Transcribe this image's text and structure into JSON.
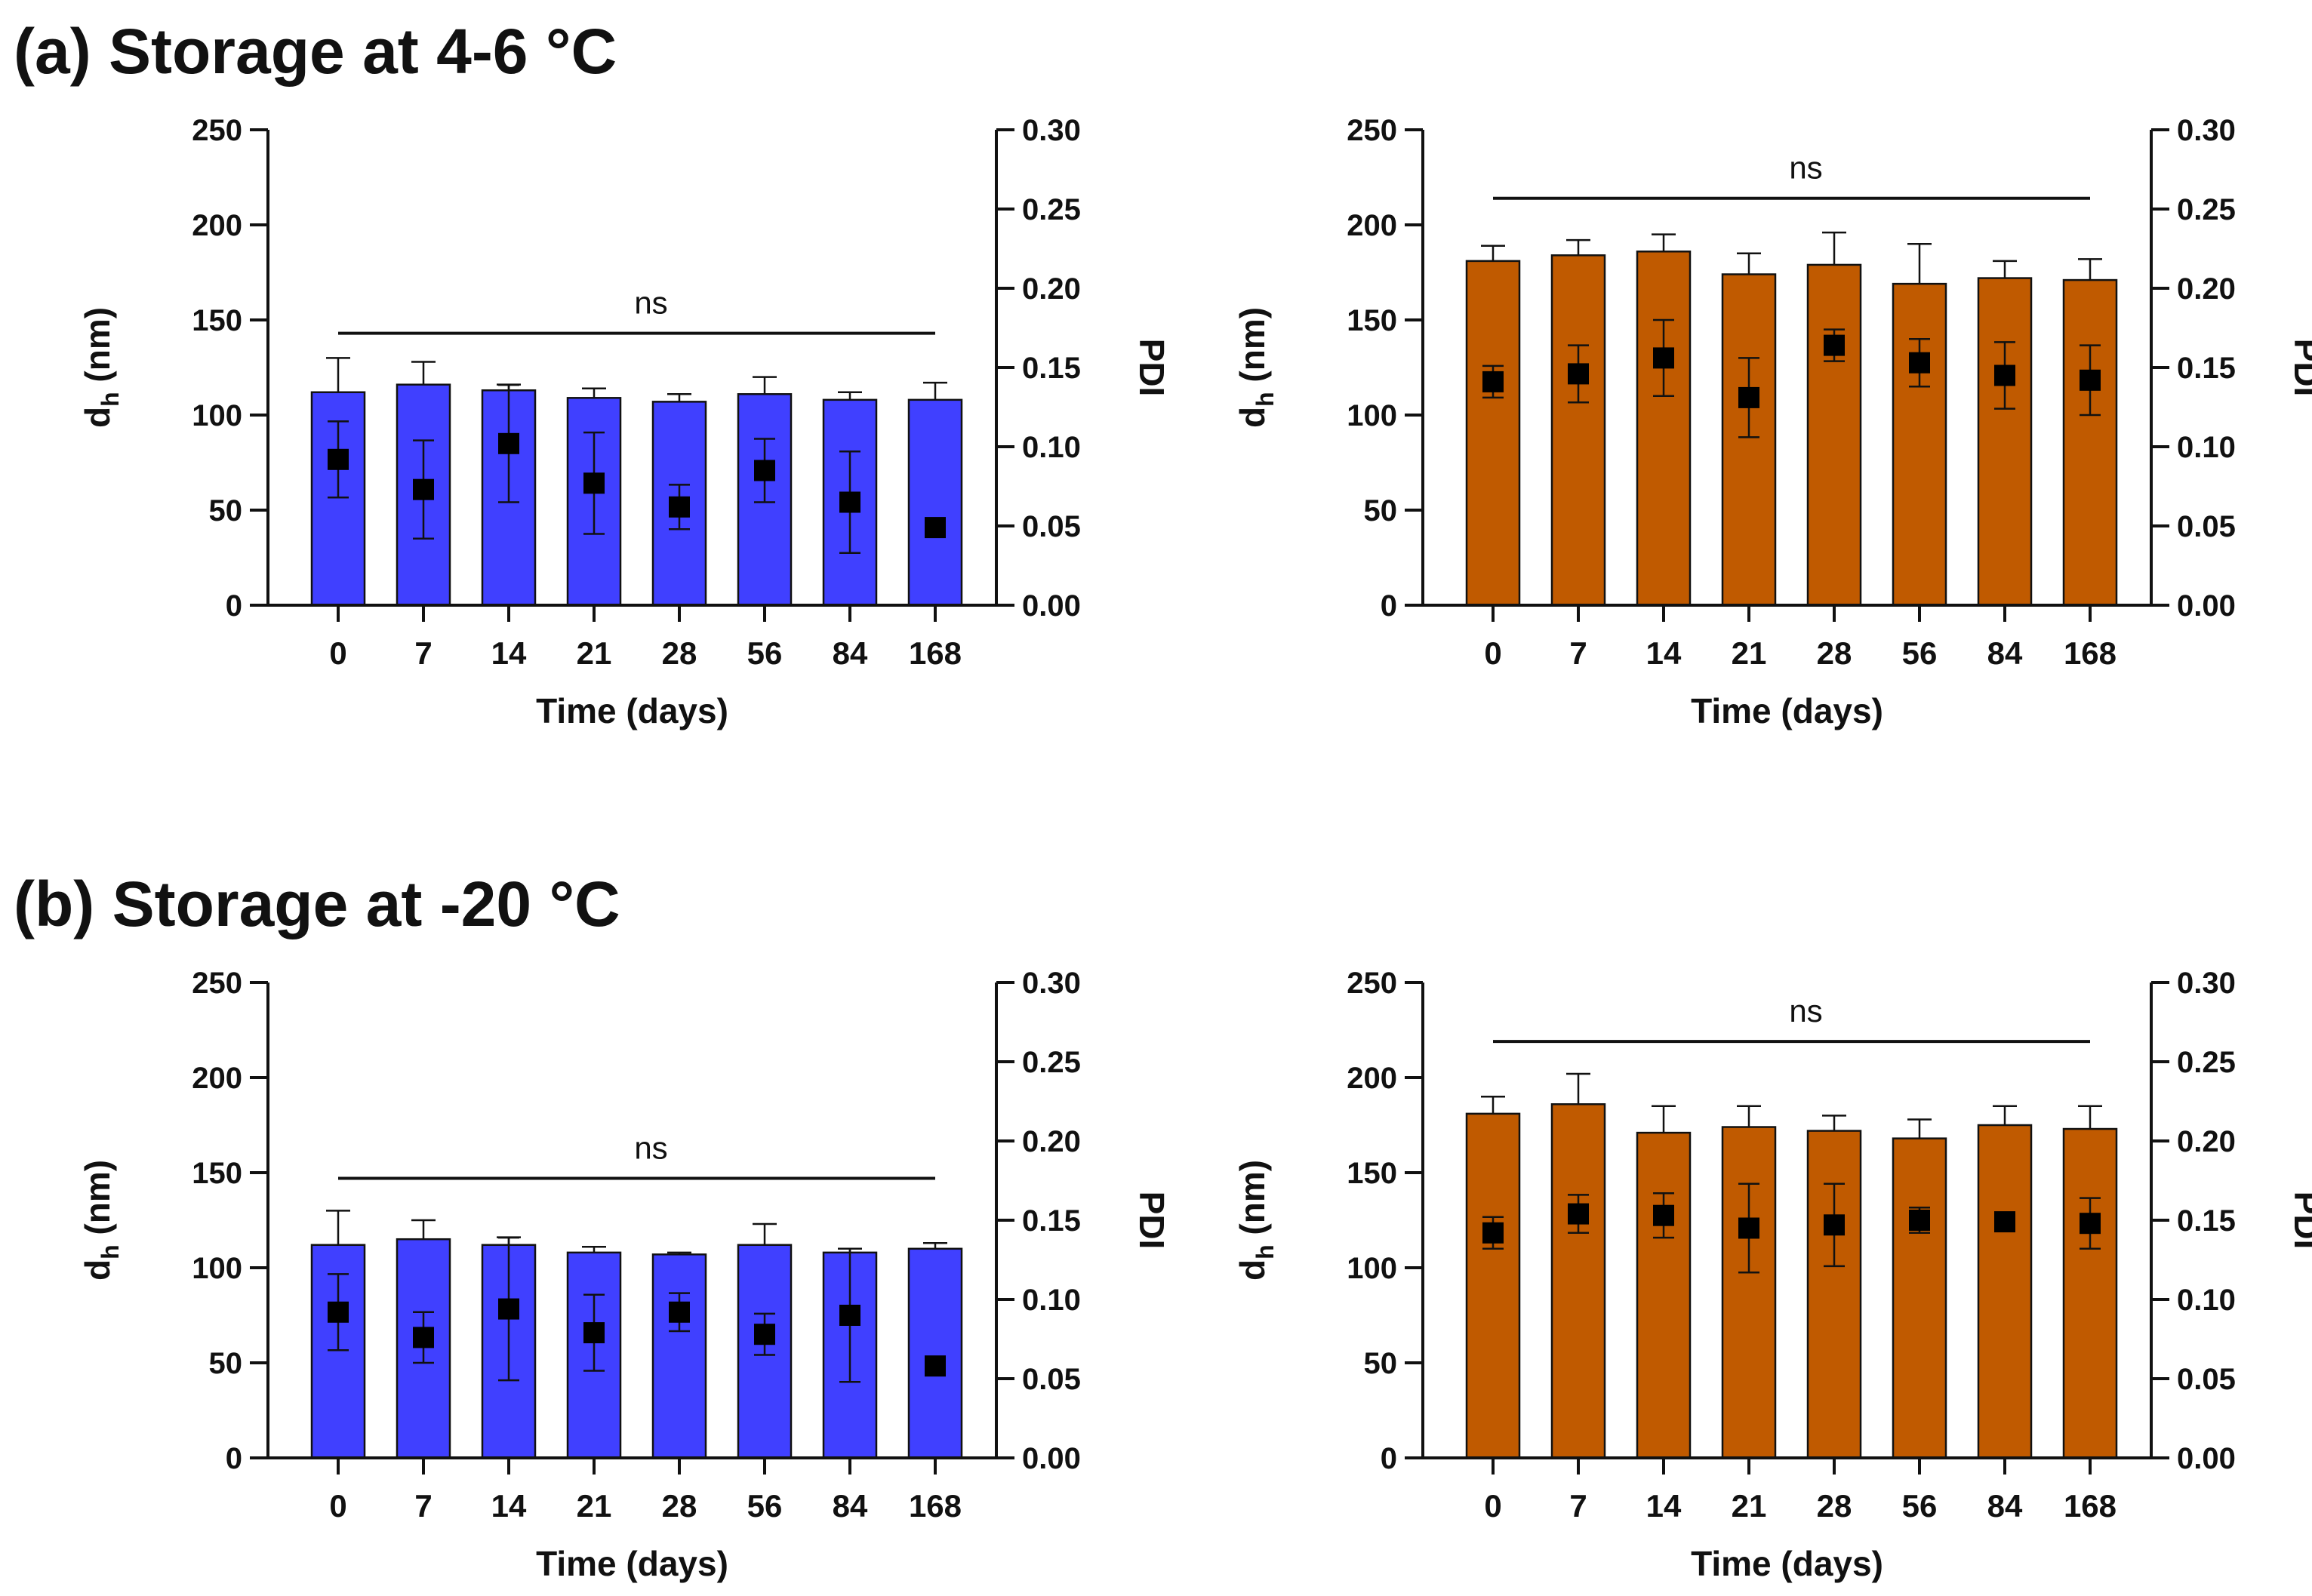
{
  "panels": [
    {
      "label": "(a) Storage at 4-6 °C"
    },
    {
      "label": "(b) Storage at -20 °C"
    }
  ],
  "chart_data": [
    {
      "type": "bar",
      "title": "",
      "panel": "(a)",
      "categories": [
        "0",
        "7",
        "14",
        "21",
        "28",
        "56",
        "84",
        "168"
      ],
      "xlabel": "Time (days)",
      "ylabel_main": "d",
      "ylabel_sub": "h",
      "ylabel_unit": " (nm)",
      "y2label": "PDI",
      "ylim": [
        0,
        250
      ],
      "yticks": [
        "0",
        "50",
        "100",
        "150",
        "200",
        "250"
      ],
      "y2lim": [
        0,
        0.3
      ],
      "y2ticks": [
        "0.00",
        "0.05",
        "0.10",
        "0.15",
        "0.20",
        "0.25",
        "0.30"
      ],
      "bar_color": "#4040FF",
      "annotation": {
        "text": "ns",
        "y": 143
      },
      "series": [
        {
          "name": "d_h",
          "axis": "left",
          "values": [
            112,
            116,
            113,
            109,
            107,
            111,
            108,
            108
          ],
          "errors": [
            18,
            12,
            3,
            5,
            4,
            9,
            4,
            9
          ]
        },
        {
          "name": "PDI",
          "axis": "right",
          "values": [
            0.092,
            0.073,
            0.102,
            0.077,
            0.062,
            0.085,
            0.065,
            0.049
          ],
          "errors": [
            0.024,
            0.031,
            0.037,
            0.032,
            0.014,
            0.02,
            0.032,
            0.003
          ]
        }
      ]
    },
    {
      "type": "bar",
      "title": "",
      "panel": "(a)",
      "categories": [
        "0",
        "7",
        "14",
        "21",
        "28",
        "56",
        "84",
        "168"
      ],
      "xlabel": "Time (days)",
      "ylabel_main": "d",
      "ylabel_sub": "h",
      "ylabel_unit": " (nm)",
      "y2label": "PDI",
      "ylim": [
        0,
        250
      ],
      "yticks": [
        "0",
        "50",
        "100",
        "150",
        "200",
        "250"
      ],
      "y2lim": [
        0,
        0.3
      ],
      "y2ticks": [
        "0.00",
        "0.05",
        "0.10",
        "0.15",
        "0.20",
        "0.25",
        "0.30"
      ],
      "bar_color": "#C05A00",
      "annotation": {
        "text": "ns",
        "y": 214
      },
      "series": [
        {
          "name": "d_h",
          "axis": "left",
          "values": [
            181,
            184,
            186,
            174,
            179,
            169,
            172,
            171
          ],
          "errors": [
            8,
            8,
            9,
            11,
            17,
            21,
            9,
            11
          ]
        },
        {
          "name": "PDI",
          "axis": "right",
          "values": [
            0.141,
            0.146,
            0.156,
            0.131,
            0.164,
            0.153,
            0.145,
            0.142
          ],
          "errors": [
            0.01,
            0.018,
            0.024,
            0.025,
            0.01,
            0.015,
            0.021,
            0.022
          ]
        }
      ]
    },
    {
      "type": "bar",
      "title": "",
      "panel": "(b)",
      "categories": [
        "0",
        "7",
        "14",
        "21",
        "28",
        "56",
        "84",
        "168"
      ],
      "xlabel": "Time (days)",
      "ylabel_main": "d",
      "ylabel_sub": "h",
      "ylabel_unit": " (nm)",
      "y2label": "PDI",
      "ylim": [
        0,
        250
      ],
      "yticks": [
        "0",
        "50",
        "100",
        "150",
        "200",
        "250"
      ],
      "y2lim": [
        0,
        0.3
      ],
      "y2ticks": [
        "0.00",
        "0.05",
        "0.10",
        "0.15",
        "0.20",
        "0.25",
        "0.30"
      ],
      "bar_color": "#4040FF",
      "annotation": {
        "text": "ns",
        "y": 147
      },
      "series": [
        {
          "name": "d_h",
          "axis": "left",
          "values": [
            112,
            115,
            112,
            108,
            107,
            112,
            108,
            110
          ],
          "errors": [
            18,
            10,
            4,
            3,
            1,
            11,
            2,
            3
          ]
        },
        {
          "name": "PDI",
          "axis": "right",
          "values": [
            0.092,
            0.076,
            0.094,
            0.079,
            0.092,
            0.078,
            0.09,
            0.058
          ],
          "errors": [
            0.024,
            0.016,
            0.045,
            0.024,
            0.012,
            0.013,
            0.042,
            0.005
          ]
        }
      ]
    },
    {
      "type": "bar",
      "title": "",
      "panel": "(b)",
      "categories": [
        "0",
        "7",
        "14",
        "21",
        "28",
        "56",
        "84",
        "168"
      ],
      "xlabel": "Time (days)",
      "ylabel_main": "d",
      "ylabel_sub": "h",
      "ylabel_unit": " (nm)",
      "y2label": "PDI",
      "ylim": [
        0,
        250
      ],
      "yticks": [
        "0",
        "50",
        "100",
        "150",
        "200",
        "250"
      ],
      "y2lim": [
        0,
        0.3
      ],
      "y2ticks": [
        "0.00",
        "0.05",
        "0.10",
        "0.15",
        "0.20",
        "0.25",
        "0.30"
      ],
      "bar_color": "#C05A00",
      "annotation": {
        "text": "ns",
        "y": 219
      },
      "series": [
        {
          "name": "d_h",
          "axis": "left",
          "values": [
            181,
            186,
            171,
            174,
            172,
            168,
            175,
            173
          ],
          "errors": [
            9,
            16,
            14,
            11,
            8,
            10,
            10,
            12
          ]
        },
        {
          "name": "PDI",
          "axis": "right",
          "values": [
            0.142,
            0.154,
            0.153,
            0.145,
            0.147,
            0.15,
            0.149,
            0.148
          ],
          "errors": [
            0.01,
            0.012,
            0.014,
            0.028,
            0.026,
            0.008,
            0.003,
            0.016
          ]
        }
      ]
    }
  ]
}
